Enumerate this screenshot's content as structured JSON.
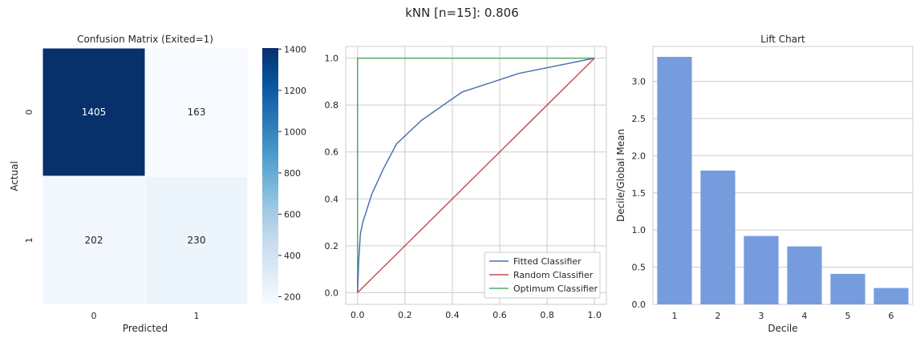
{
  "figure": {
    "suptitle": "kNN [n=15]: 0.806"
  },
  "chart_data": [
    {
      "type": "heatmap",
      "title": "Confusion Matrix (Exited=1)",
      "xlabel": "Predicted",
      "ylabel": "Actual",
      "row_labels": [
        "0",
        "1"
      ],
      "col_labels": [
        "0",
        "1"
      ],
      "values": [
        [
          1405,
          163
        ],
        [
          202,
          230
        ]
      ],
      "colormap": "Blues",
      "colorbar": {
        "range": [
          163,
          1405
        ],
        "ticks": [
          200,
          400,
          600,
          800,
          1000,
          1200,
          1400
        ]
      }
    },
    {
      "type": "line",
      "title": "",
      "xlabel": "",
      "ylabel": "",
      "xlim": [
        -0.05,
        1.05
      ],
      "ylim": [
        -0.05,
        1.05
      ],
      "xticks": [
        "0.0",
        "0.2",
        "0.4",
        "0.6",
        "0.8",
        "1.0"
      ],
      "yticks": [
        "0.0",
        "0.2",
        "0.4",
        "0.6",
        "0.8",
        "1.0"
      ],
      "grid": true,
      "legend_position": "lower-right",
      "series": [
        {
          "name": "Fitted Classifier",
          "color": "#4c72b0",
          "x": [
            0,
            0.005,
            0.012,
            0.022,
            0.035,
            0.06,
            0.11,
            0.165,
            0.27,
            0.44,
            0.68,
            1.0
          ],
          "y": [
            0,
            0.14,
            0.25,
            0.3,
            0.34,
            0.42,
            0.53,
            0.635,
            0.735,
            0.855,
            0.935,
            1.0
          ]
        },
        {
          "name": "Random Classifier",
          "color": "#c44e52",
          "x": [
            0,
            1
          ],
          "y": [
            0,
            1
          ]
        },
        {
          "name": "Optimum Classifier",
          "color": "#55a868",
          "x": [
            0,
            0,
            1
          ],
          "y": [
            0,
            1,
            1
          ]
        }
      ]
    },
    {
      "type": "bar",
      "title": "Lift Chart",
      "xlabel": "Decile",
      "ylabel": "Decile/Global Mean",
      "categories": [
        "1",
        "2",
        "3",
        "4",
        "5",
        "6"
      ],
      "values": [
        3.33,
        1.8,
        0.92,
        0.78,
        0.41,
        0.22
      ],
      "ylim": [
        0,
        3.47
      ],
      "yticks": [
        "0.0",
        "0.5",
        "1.0",
        "1.5",
        "2.0",
        "2.5",
        "3.0"
      ],
      "bar_color": "#769cde",
      "grid": true
    }
  ]
}
